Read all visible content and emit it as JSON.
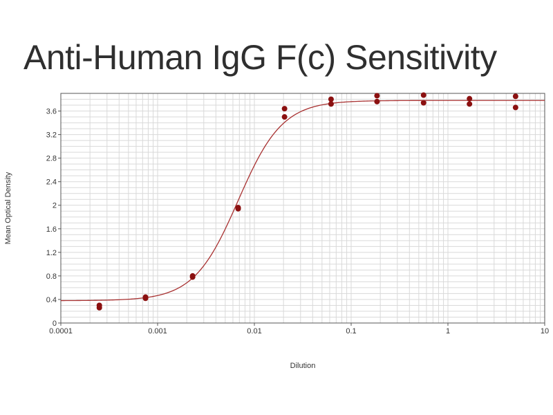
{
  "chart_data": {
    "type": "scatter",
    "title": "Anti-Human IgG F(c) Sensitivity",
    "xlabel": "Dilution",
    "ylabel": "Mean Optical Density",
    "xscale": "log",
    "xlim": [
      0.0001,
      10
    ],
    "ylim": [
      0,
      3.9
    ],
    "grid": true,
    "x_tick_labels": [
      "0.0001",
      "0.001",
      "0.01",
      "0.1",
      "1",
      "10"
    ],
    "y_tick_labels": [
      "0",
      "0.4",
      "0.8",
      "1.2",
      "1.6",
      "2",
      "2.4",
      "2.8",
      "3.2",
      "3.6"
    ],
    "x_ticks": [
      0.0001,
      0.001,
      0.01,
      0.1,
      1,
      10
    ],
    "y_ticks": [
      0,
      0.4,
      0.8,
      1.2,
      1.6,
      2,
      2.4,
      2.8,
      3.2,
      3.6
    ],
    "colors": {
      "points": "#8b1010",
      "curve": "#a83030",
      "grid": "#d9d9d9",
      "axis": "#555555"
    },
    "series": [
      {
        "points": [
          {
            "x": 0.00025,
            "y": 0.26
          },
          {
            "x": 0.00025,
            "y": 0.3
          },
          {
            "x": 0.00075,
            "y": 0.42
          },
          {
            "x": 0.00075,
            "y": 0.44
          },
          {
            "x": 0.0023,
            "y": 0.78
          },
          {
            "x": 0.0023,
            "y": 0.8
          },
          {
            "x": 0.0068,
            "y": 1.94
          },
          {
            "x": 0.0068,
            "y": 1.96
          },
          {
            "x": 0.0205,
            "y": 3.5
          },
          {
            "x": 0.0205,
            "y": 3.64
          },
          {
            "x": 0.062,
            "y": 3.72
          },
          {
            "x": 0.062,
            "y": 3.8
          },
          {
            "x": 0.185,
            "y": 3.76
          },
          {
            "x": 0.185,
            "y": 3.86
          },
          {
            "x": 0.56,
            "y": 3.74
          },
          {
            "x": 0.56,
            "y": 3.87
          },
          {
            "x": 1.67,
            "y": 3.72
          },
          {
            "x": 1.67,
            "y": 3.81
          },
          {
            "x": 5.0,
            "y": 3.66
          },
          {
            "x": 5.0,
            "y": 3.85
          }
        ]
      }
    ],
    "fit": {
      "model": "4PL",
      "bottom": 0.38,
      "top": 3.78,
      "ec50": 0.0068,
      "hill": 1.9
    }
  }
}
